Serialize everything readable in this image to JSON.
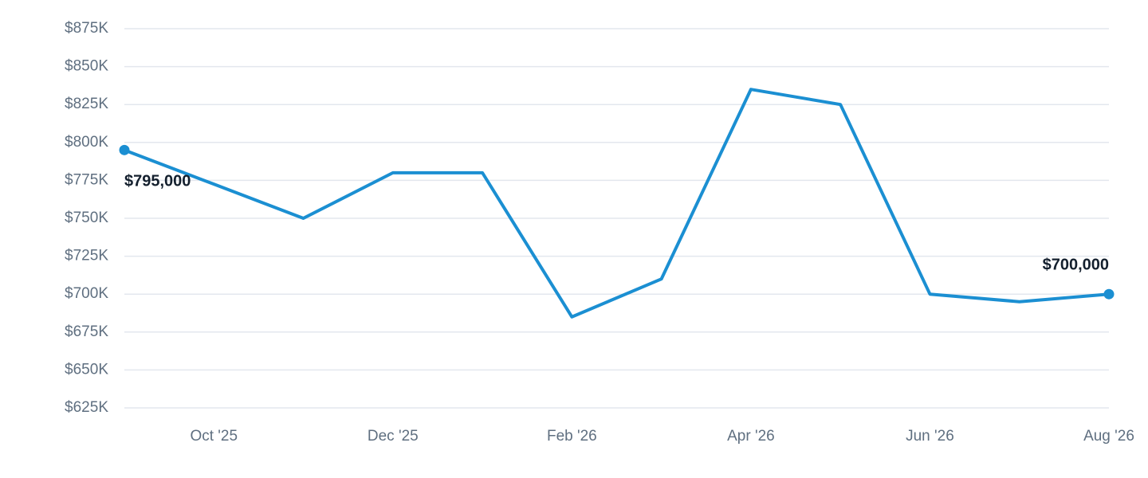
{
  "chart_data": {
    "type": "line",
    "categories": [
      null,
      "Oct '25",
      null,
      "Dec '25",
      null,
      "Feb '26",
      null,
      "Apr '26",
      null,
      "Jun '26",
      null,
      "Aug '26"
    ],
    "series": [
      {
        "name": null,
        "color": "#1b8fd2",
        "values": [
          795000,
          772500,
          750000,
          780000,
          780000,
          685000,
          710000,
          835000,
          825000,
          700000,
          695000,
          700000
        ],
        "value_labels": [
          "$795,000",
          null,
          null,
          null,
          null,
          null,
          null,
          null,
          null,
          null,
          null,
          "$700,000"
        ]
      }
    ],
    "ylim": [
      625000,
      875000
    ],
    "yticks": [
      {
        "value": 625000,
        "label": "$625K"
      },
      {
        "value": 650000,
        "label": "$650K"
      },
      {
        "value": 675000,
        "label": "$675K"
      },
      {
        "value": 700000,
        "label": "$700K"
      },
      {
        "value": 725000,
        "label": "$725K"
      },
      {
        "value": 750000,
        "label": "$750K"
      },
      {
        "value": 775000,
        "label": "$775K"
      },
      {
        "value": 800000,
        "label": "$800K"
      },
      {
        "value": 825000,
        "label": "$825K"
      },
      {
        "value": 850000,
        "label": "$850K"
      },
      {
        "value": 875000,
        "label": "$875K"
      }
    ],
    "grid": true
  }
}
